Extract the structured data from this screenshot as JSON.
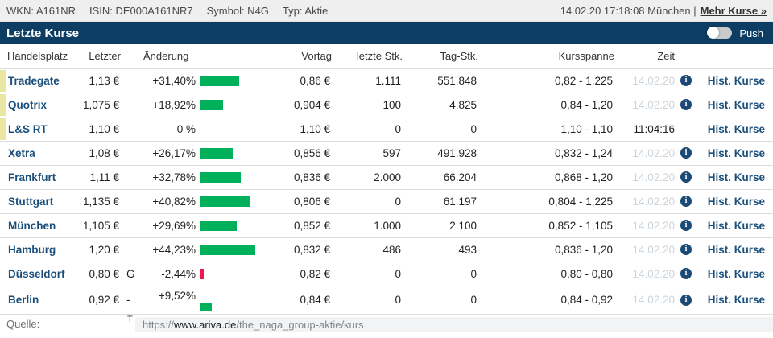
{
  "colors": {
    "accent_navy": "#0d3d62",
    "link_blue": "#1a4f7c",
    "positive_green": "#00b05b",
    "negative_red": "#ee1851",
    "marker_yellow": "#e9e6a4",
    "date_gray": "#ccd4da"
  },
  "meta_bar": {
    "wkn": "WKN: A161NR",
    "isin": "ISIN: DE000A161NR7",
    "symbol": "Symbol: N4G",
    "typ": "Typ: Aktie",
    "timestamp": "14.02.20 17:18:08 München |",
    "more_link": "Mehr Kurse »"
  },
  "title_bar": {
    "title": "Letzte Kurse",
    "push_label": "Push"
  },
  "table": {
    "headers": {
      "handelsplatz": "Handelsplatz",
      "letzter": "Letzter",
      "aenderung": "Änderung",
      "vortag": "Vortag",
      "letzte_stk": "letzte Stk.",
      "tag_stk": "Tag-Stk.",
      "kursspanne": "Kursspanne",
      "zeit": "Zeit"
    },
    "hist_link_label": "Hist. Kurse",
    "rows": [
      {
        "name": "Tradegate",
        "letzter": "1,13 €",
        "suffix": "",
        "change": "+31,40%",
        "change_pct": 31.4,
        "vortag": "0,86 €",
        "letzte_stk": "1.111",
        "tag_stk": "551.848",
        "kursspanne": "0,82 - 1,225",
        "zeit": "14.02.20",
        "zeit_gray": true,
        "has_info": true,
        "marker": true,
        "wrapped": false
      },
      {
        "name": "Quotrix",
        "letzter": "1,075 €",
        "suffix": "",
        "change": "+18,92%",
        "change_pct": 18.92,
        "vortag": "0,904 €",
        "letzte_stk": "100",
        "tag_stk": "4.825",
        "kursspanne": "0,84 - 1,20",
        "zeit": "14.02.20",
        "zeit_gray": true,
        "has_info": true,
        "marker": true,
        "wrapped": false
      },
      {
        "name": "L&S RT",
        "letzter": "1,10 €",
        "suffix": "",
        "change": "0 %",
        "change_pct": 0,
        "vortag": "1,10 €",
        "letzte_stk": "0",
        "tag_stk": "0",
        "kursspanne": "1,10 - 1,10",
        "zeit": "11:04:16",
        "zeit_gray": false,
        "has_info": false,
        "marker": true,
        "wrapped": false
      },
      {
        "name": "Xetra",
        "letzter": "1,08 €",
        "suffix": "",
        "change": "+26,17%",
        "change_pct": 26.17,
        "vortag": "0,856 €",
        "letzte_stk": "597",
        "tag_stk": "491.928",
        "kursspanne": "0,832 - 1,24",
        "zeit": "14.02.20",
        "zeit_gray": true,
        "has_info": true,
        "marker": false,
        "wrapped": false
      },
      {
        "name": "Frankfurt",
        "letzter": "1,11 €",
        "suffix": "",
        "change": "+32,78%",
        "change_pct": 32.78,
        "vortag": "0,836 €",
        "letzte_stk": "2.000",
        "tag_stk": "66.204",
        "kursspanne": "0,868 - 1,20",
        "zeit": "14.02.20",
        "zeit_gray": true,
        "has_info": true,
        "marker": false,
        "wrapped": false
      },
      {
        "name": "Stuttgart",
        "letzter": "1,135 €",
        "suffix": "",
        "change": "+40,82%",
        "change_pct": 40.82,
        "vortag": "0,806 €",
        "letzte_stk": "0",
        "tag_stk": "61.197",
        "kursspanne": "0,804 - 1,225",
        "zeit": "14.02.20",
        "zeit_gray": true,
        "has_info": true,
        "marker": false,
        "wrapped": false
      },
      {
        "name": "München",
        "letzter": "1,105 €",
        "suffix": "",
        "change": "+29,69%",
        "change_pct": 29.69,
        "vortag": "0,852 €",
        "letzte_stk": "1.000",
        "tag_stk": "2.100",
        "kursspanne": "0,852 - 1,105",
        "zeit": "14.02.20",
        "zeit_gray": true,
        "has_info": true,
        "marker": false,
        "wrapped": false
      },
      {
        "name": "Hamburg",
        "letzter": "1,20 €",
        "suffix": "",
        "change": "+44,23%",
        "change_pct": 44.23,
        "vortag": "0,832 €",
        "letzte_stk": "486",
        "tag_stk": "493",
        "kursspanne": "0,836 - 1,20",
        "zeit": "14.02.20",
        "zeit_gray": true,
        "has_info": true,
        "marker": false,
        "wrapped": false
      },
      {
        "name": "Düsseldorf",
        "letzter": "0,80 €",
        "suffix": "G",
        "change": "-2,44%",
        "change_pct": -2.44,
        "vortag": "0,82 €",
        "letzte_stk": "0",
        "tag_stk": "0",
        "kursspanne": "0,80 - 0,80",
        "zeit": "14.02.20",
        "zeit_gray": true,
        "has_info": true,
        "marker": false,
        "wrapped": false
      },
      {
        "name": "Berlin",
        "letzter": "0,92 €",
        "suffix": "-",
        "change": "+9,52%",
        "change_pct": 9.52,
        "vortag": "0,84 €",
        "letzte_stk": "0",
        "tag_stk": "0",
        "kursspanne": "0,84 - 0,92",
        "zeit": "14.02.20",
        "zeit_gray": true,
        "has_info": true,
        "marker": false,
        "wrapped": true
      }
    ]
  },
  "footer": {
    "quelle_label": "Quelle:",
    "stray_text": "T",
    "url_scheme": "https://",
    "url_host": "www.ariva.de",
    "url_path": "/the_naga_group-aktie/kurs"
  }
}
